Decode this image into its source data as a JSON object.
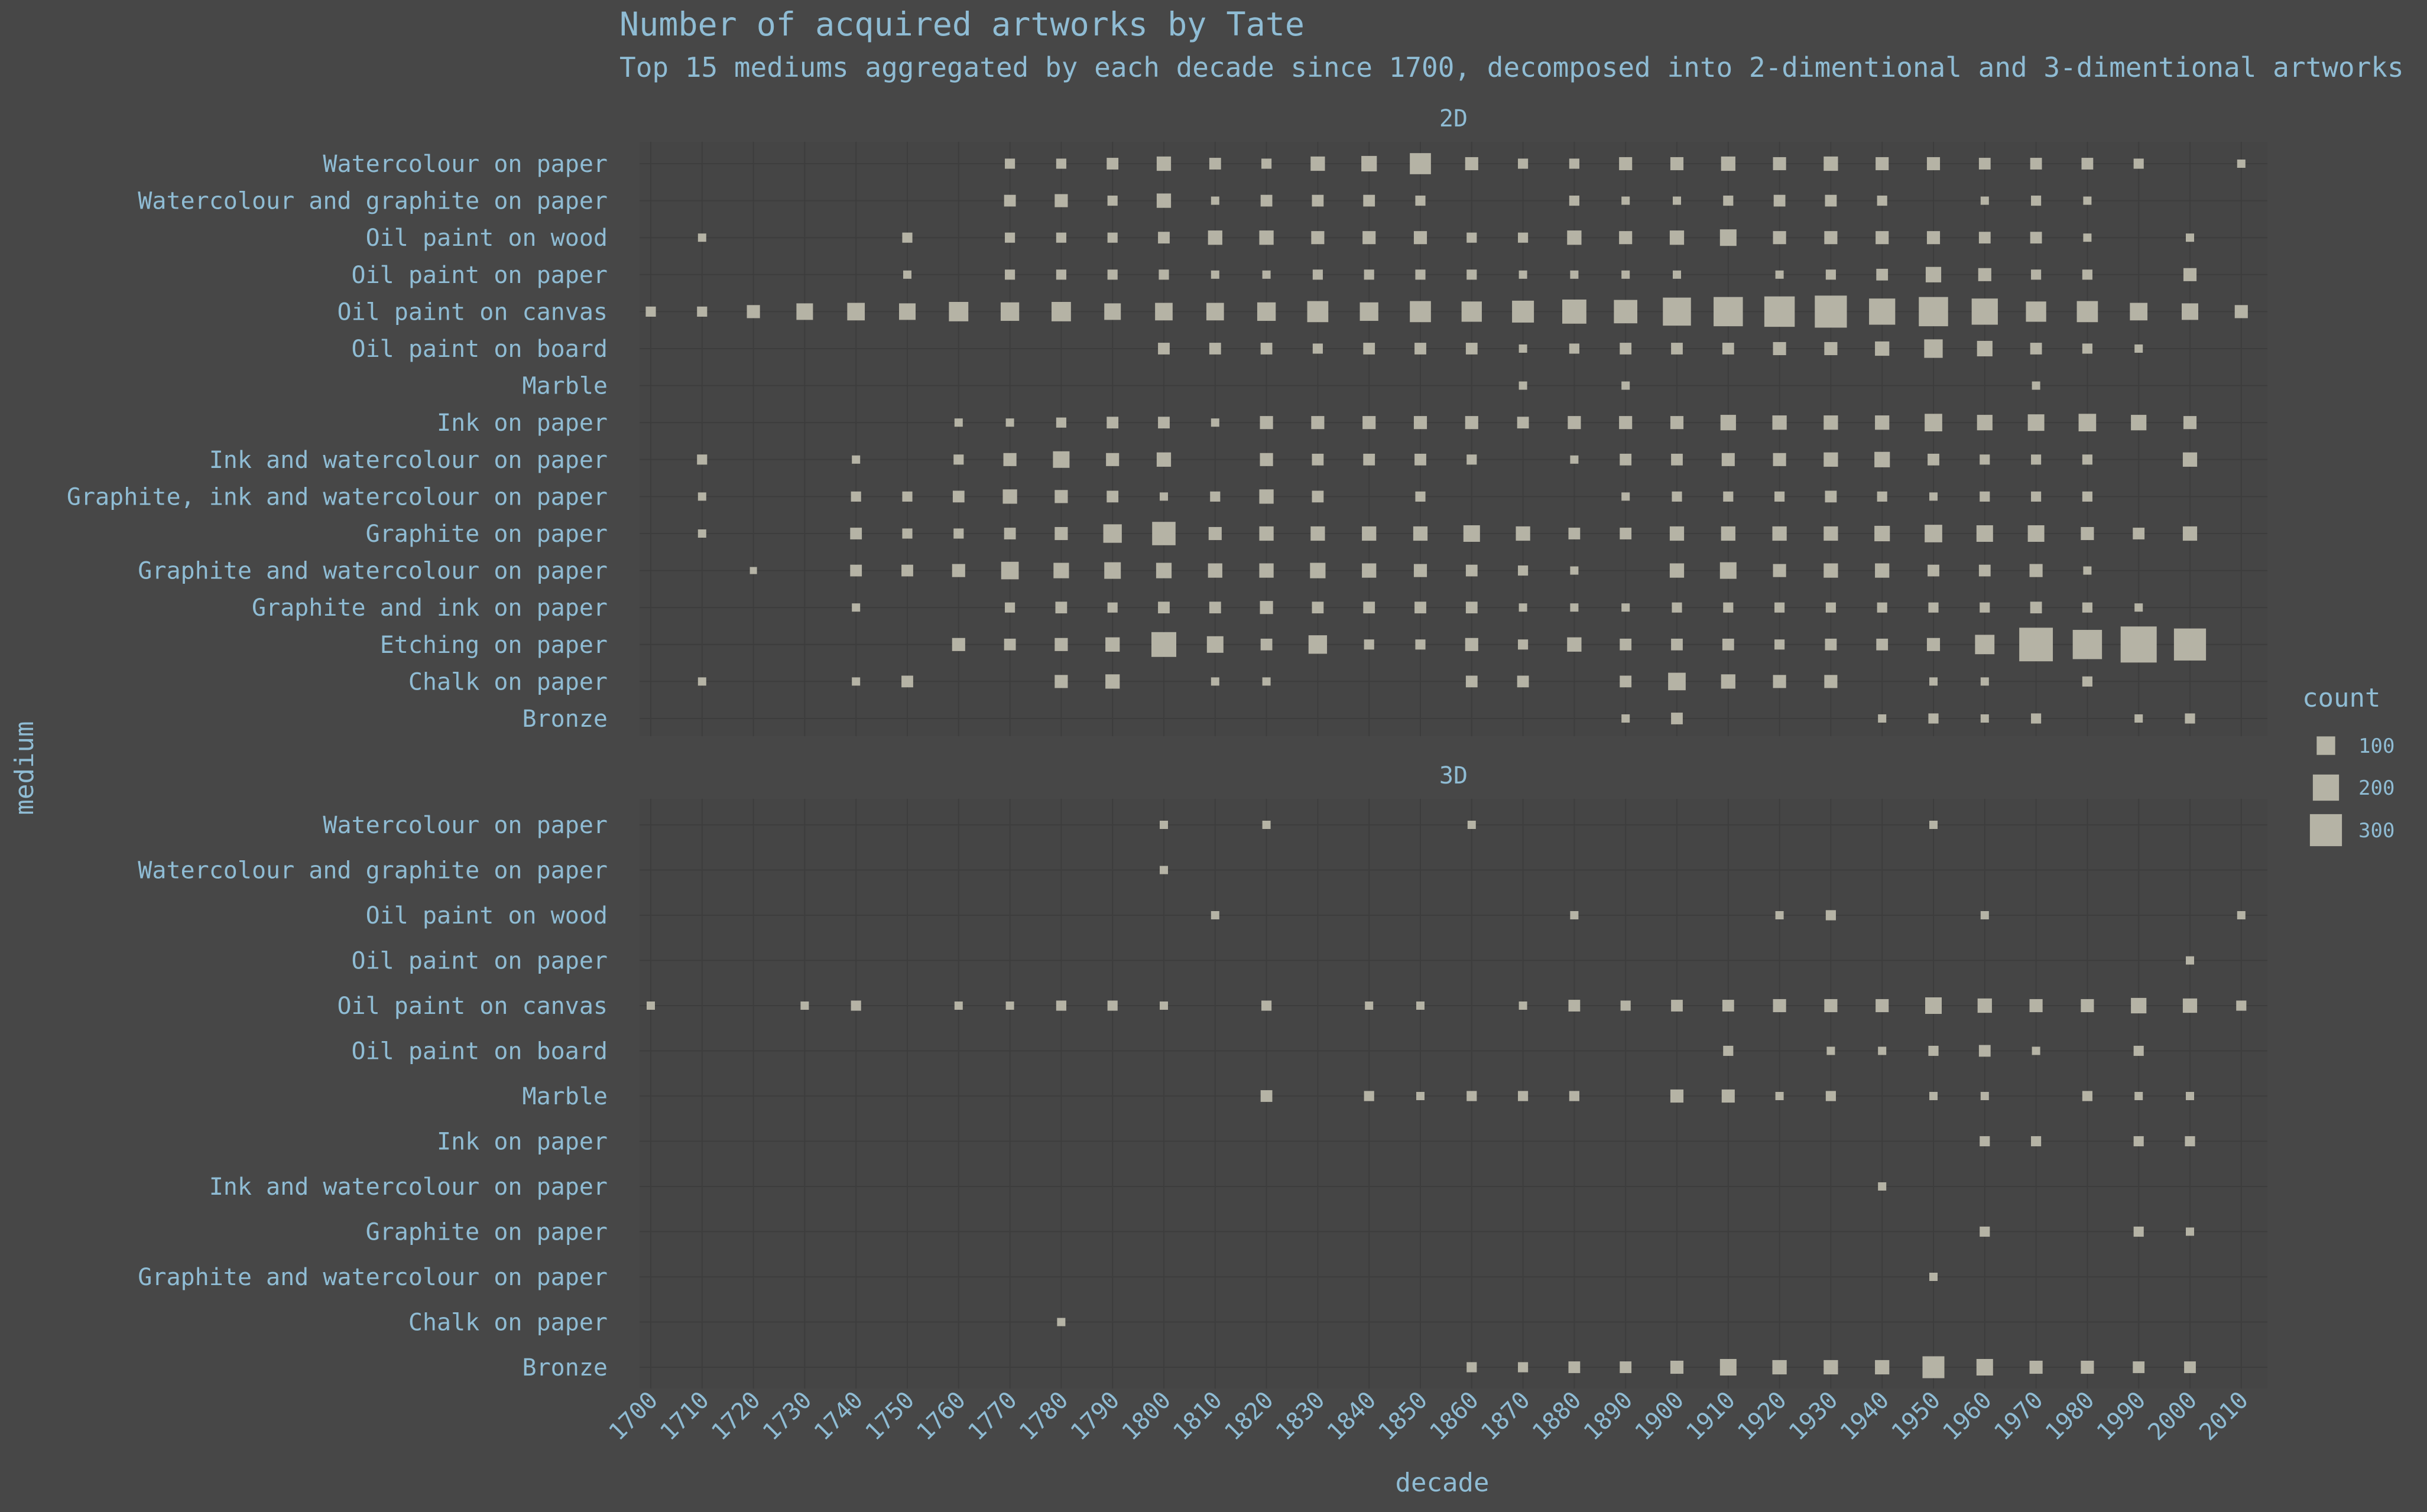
{
  "chart_data": {
    "type": "scatter",
    "title": "Number of acquired artworks by Tate",
    "subtitle": "Top 15 mediums aggregated by each decade since 1700, decomposed into 2-dimentional and 3-dimentional artworks",
    "xlabel": "decade",
    "ylabel": "medium",
    "x": [
      1700,
      1710,
      1720,
      1730,
      1740,
      1750,
      1760,
      1770,
      1780,
      1790,
      1800,
      1810,
      1820,
      1830,
      1840,
      1850,
      1860,
      1870,
      1880,
      1890,
      1900,
      1910,
      1920,
      1930,
      1940,
      1950,
      1960,
      1970,
      1980,
      1990,
      2000,
      2010
    ],
    "size_legend": {
      "title": "count",
      "values": [
        100,
        200,
        300
      ]
    },
    "colors": {
      "background": "#474747",
      "grid": "#3d3d3d",
      "marker": "#b5b3a5",
      "text": "#8fbcd4"
    },
    "facets": [
      {
        "label": "2D",
        "mediums": [
          "Watercolour on paper",
          "Watercolour and graphite on paper",
          "Oil paint on wood",
          "Oil paint on paper",
          "Oil paint on canvas",
          "Oil paint on board",
          "Marble",
          "Ink on paper",
          "Ink and watercolour on paper",
          "Graphite, ink and watercolour on paper",
          "Graphite on paper",
          "Graphite and watercolour on paper",
          "Graphite and ink on paper",
          "Etching on paper",
          "Chalk on paper",
          "Bronze"
        ],
        "points": [
          {
            "medium": "Watercolour on paper",
            "counts": {
              "1770": 30,
              "1780": 30,
              "1790": 40,
              "1800": 60,
              "1810": 40,
              "1820": 30,
              "1830": 60,
              "1840": 70,
              "1850": 130,
              "1860": 50,
              "1870": 30,
              "1880": 30,
              "1890": 50,
              "1900": 50,
              "1910": 60,
              "1920": 50,
              "1930": 60,
              "1940": 50,
              "1950": 50,
              "1960": 40,
              "1970": 40,
              "1980": 40,
              "1990": 30,
              "2010": 20
            }
          },
          {
            "medium": "Watercolour and graphite on paper",
            "counts": {
              "1770": 40,
              "1780": 50,
              "1790": 30,
              "1800": 60,
              "1810": 20,
              "1820": 40,
              "1830": 40,
              "1840": 40,
              "1850": 30,
              "1880": 30,
              "1890": 20,
              "1900": 20,
              "1910": 30,
              "1920": 40,
              "1930": 40,
              "1940": 30,
              "1960": 20,
              "1970": 30,
              "1980": 20
            }
          },
          {
            "medium": "Oil paint on wood",
            "counts": {
              "1710": 20,
              "1750": 30,
              "1770": 30,
              "1780": 30,
              "1790": 30,
              "1800": 40,
              "1810": 60,
              "1820": 60,
              "1830": 50,
              "1840": 50,
              "1850": 50,
              "1860": 30,
              "1870": 30,
              "1880": 60,
              "1890": 50,
              "1900": 60,
              "1910": 80,
              "1920": 50,
              "1930": 50,
              "1940": 50,
              "1950": 50,
              "1960": 40,
              "1970": 40,
              "1980": 20,
              "2000": 20
            }
          },
          {
            "medium": "Oil paint on paper",
            "counts": {
              "1750": 20,
              "1770": 30,
              "1780": 30,
              "1790": 30,
              "1800": 30,
              "1810": 20,
              "1820": 20,
              "1830": 30,
              "1840": 30,
              "1850": 30,
              "1860": 30,
              "1870": 20,
              "1880": 20,
              "1890": 20,
              "1900": 20,
              "1920": 20,
              "1930": 30,
              "1940": 40,
              "1950": 70,
              "1960": 50,
              "1970": 30,
              "1980": 30,
              "2000": 50
            }
          },
          {
            "medium": "Oil paint on canvas",
            "counts": {
              "1700": 30,
              "1710": 30,
              "1720": 50,
              "1730": 80,
              "1740": 90,
              "1750": 80,
              "1760": 110,
              "1770": 100,
              "1780": 110,
              "1790": 80,
              "1800": 90,
              "1810": 90,
              "1820": 100,
              "1830": 130,
              "1840": 100,
              "1850": 130,
              "1860": 120,
              "1870": 140,
              "1880": 170,
              "1890": 160,
              "1900": 230,
              "1910": 250,
              "1920": 270,
              "1930": 300,
              "1940": 200,
              "1950": 250,
              "1960": 200,
              "1970": 120,
              "1980": 130,
              "1990": 90,
              "2000": 80,
              "2010": 50
            }
          },
          {
            "medium": "Oil paint on board",
            "counts": {
              "1800": 40,
              "1810": 40,
              "1820": 40,
              "1830": 30,
              "1840": 40,
              "1850": 40,
              "1860": 40,
              "1870": 20,
              "1880": 30,
              "1890": 40,
              "1900": 40,
              "1910": 40,
              "1920": 50,
              "1930": 50,
              "1940": 60,
              "1950": 100,
              "1960": 70,
              "1970": 40,
              "1980": 30,
              "1990": 20
            }
          },
          {
            "medium": "Marble",
            "counts": {
              "1870": 20,
              "1890": 20,
              "1970": 20
            }
          },
          {
            "medium": "Ink on paper",
            "counts": {
              "1760": 20,
              "1770": 20,
              "1780": 30,
              "1790": 40,
              "1800": 40,
              "1810": 20,
              "1820": 50,
              "1830": 50,
              "1840": 50,
              "1850": 50,
              "1860": 50,
              "1870": 40,
              "1880": 50,
              "1890": 50,
              "1900": 50,
              "1910": 70,
              "1920": 60,
              "1930": 60,
              "1940": 60,
              "1950": 90,
              "1960": 70,
              "1970": 80,
              "1980": 90,
              "1990": 70,
              "2000": 50
            }
          },
          {
            "medium": "Ink and watercolour on paper",
            "counts": {
              "1710": 30,
              "1740": 20,
              "1760": 30,
              "1770": 50,
              "1780": 80,
              "1790": 50,
              "1800": 60,
              "1820": 50,
              "1830": 40,
              "1840": 40,
              "1850": 40,
              "1860": 30,
              "1880": 20,
              "1890": 40,
              "1900": 40,
              "1910": 50,
              "1920": 50,
              "1930": 60,
              "1940": 70,
              "1950": 40,
              "1960": 30,
              "1970": 30,
              "1980": 30,
              "2000": 60
            }
          },
          {
            "medium": "Graphite, ink and watercolour on paper",
            "counts": {
              "1710": 20,
              "1740": 30,
              "1750": 30,
              "1760": 40,
              "1770": 60,
              "1780": 50,
              "1790": 40,
              "1800": 20,
              "1810": 30,
              "1820": 60,
              "1830": 40,
              "1850": 30,
              "1890": 20,
              "1900": 30,
              "1910": 30,
              "1920": 30,
              "1930": 40,
              "1940": 30,
              "1950": 20,
              "1960": 30,
              "1970": 30,
              "1980": 30
            }
          },
          {
            "medium": "Graphite on paper",
            "counts": {
              "1710": 20,
              "1740": 40,
              "1750": 30,
              "1760": 30,
              "1770": 40,
              "1780": 50,
              "1790": 100,
              "1800": 160,
              "1810": 50,
              "1820": 60,
              "1830": 60,
              "1840": 60,
              "1850": 60,
              "1860": 80,
              "1870": 60,
              "1880": 40,
              "1890": 40,
              "1900": 60,
              "1910": 60,
              "1920": 60,
              "1930": 60,
              "1940": 70,
              "1950": 90,
              "1960": 80,
              "1970": 80,
              "1980": 50,
              "1990": 40,
              "2000": 60
            }
          },
          {
            "medium": "Graphite and watercolour on paper",
            "counts": {
              "1720": 10,
              "1740": 40,
              "1750": 40,
              "1760": 50,
              "1770": 90,
              "1780": 70,
              "1790": 80,
              "1800": 70,
              "1810": 60,
              "1820": 60,
              "1830": 70,
              "1840": 60,
              "1850": 50,
              "1860": 40,
              "1870": 30,
              "1880": 20,
              "1900": 60,
              "1910": 80,
              "1920": 50,
              "1930": 60,
              "1940": 60,
              "1950": 40,
              "1960": 40,
              "1970": 50,
              "1980": 20
            }
          },
          {
            "medium": "Graphite and ink on paper",
            "counts": {
              "1740": 20,
              "1770": 30,
              "1780": 40,
              "1790": 30,
              "1800": 40,
              "1810": 40,
              "1820": 50,
              "1830": 40,
              "1840": 40,
              "1850": 40,
              "1860": 40,
              "1870": 20,
              "1880": 20,
              "1890": 20,
              "1900": 30,
              "1910": 30,
              "1920": 30,
              "1930": 30,
              "1940": 30,
              "1950": 30,
              "1960": 30,
              "1970": 40,
              "1980": 30,
              "1990": 20
            }
          },
          {
            "medium": "Etching on paper",
            "counts": {
              "1760": 50,
              "1770": 40,
              "1780": 50,
              "1790": 60,
              "1800": 180,
              "1810": 80,
              "1820": 40,
              "1830": 100,
              "1840": 30,
              "1850": 30,
              "1860": 50,
              "1870": 30,
              "1880": 60,
              "1890": 40,
              "1900": 40,
              "1910": 40,
              "1920": 30,
              "1930": 40,
              "1940": 40,
              "1950": 50,
              "1960": 110,
              "1970": 330,
              "1980": 250,
              "1990": 380,
              "2000": 300
            }
          },
          {
            "medium": "Chalk on paper",
            "counts": {
              "1710": 20,
              "1740": 20,
              "1750": 40,
              "1780": 50,
              "1790": 60,
              "1810": 20,
              "1820": 20,
              "1860": 40,
              "1870": 40,
              "1890": 40,
              "1900": 90,
              "1910": 60,
              "1920": 50,
              "1930": 50,
              "1950": 20,
              "1960": 20,
              "1980": 30
            }
          },
          {
            "medium": "Bronze",
            "counts": {
              "1890": 20,
              "1900": 40,
              "1940": 20,
              "1950": 30,
              "1960": 20,
              "1970": 30,
              "1990": 20,
              "2000": 30
            }
          }
        ]
      },
      {
        "label": "3D",
        "mediums": [
          "Watercolour on paper",
          "Watercolour and graphite on paper",
          "Oil paint on wood",
          "Oil paint on paper",
          "Oil paint on canvas",
          "Oil paint on board",
          "Marble",
          "Ink on paper",
          "Ink and watercolour on paper",
          "Graphite on paper",
          "Graphite and watercolour on paper",
          "Chalk on paper",
          "Bronze"
        ],
        "points": [
          {
            "medium": "Watercolour on paper",
            "counts": {
              "1800": 20,
              "1820": 20,
              "1860": 20,
              "1950": 20
            }
          },
          {
            "medium": "Watercolour and graphite on paper",
            "counts": {
              "1800": 20
            }
          },
          {
            "medium": "Oil paint on wood",
            "counts": {
              "1810": 20,
              "1880": 20,
              "1920": 20,
              "1930": 30,
              "1960": 20,
              "2010": 20
            }
          },
          {
            "medium": "Oil paint on paper",
            "counts": {
              "2000": 20
            }
          },
          {
            "medium": "Oil paint on canvas",
            "counts": {
              "1700": 20,
              "1730": 20,
              "1740": 30,
              "1760": 20,
              "1770": 20,
              "1780": 30,
              "1790": 30,
              "1800": 20,
              "1820": 30,
              "1840": 20,
              "1850": 20,
              "1870": 20,
              "1880": 40,
              "1890": 30,
              "1900": 40,
              "1910": 40,
              "1920": 50,
              "1930": 50,
              "1940": 50,
              "1950": 80,
              "1960": 60,
              "1970": 50,
              "1980": 50,
              "1990": 70,
              "2000": 60,
              "2010": 30
            }
          },
          {
            "medium": "Oil paint on board",
            "counts": {
              "1910": 30,
              "1930": 20,
              "1940": 20,
              "1950": 30,
              "1960": 40,
              "1970": 20,
              "1990": 30
            }
          },
          {
            "medium": "Marble",
            "counts": {
              "1820": 40,
              "1840": 30,
              "1850": 20,
              "1860": 30,
              "1870": 30,
              "1880": 30,
              "1900": 50,
              "1910": 50,
              "1920": 20,
              "1930": 30,
              "1950": 20,
              "1960": 20,
              "1980": 30,
              "1990": 20,
              "2000": 20
            }
          },
          {
            "medium": "Ink on paper",
            "counts": {
              "1960": 30,
              "1970": 30,
              "1990": 30,
              "2000": 30
            }
          },
          {
            "medium": "Ink and watercolour on paper",
            "counts": {
              "1940": 20
            }
          },
          {
            "medium": "Graphite on paper",
            "counts": {
              "1960": 30,
              "1990": 30,
              "2000": 20
            }
          },
          {
            "medium": "Graphite and watercolour on paper",
            "counts": {
              "1950": 20
            }
          },
          {
            "medium": "Chalk on paper",
            "counts": {
              "1780": 20
            }
          },
          {
            "medium": "Bronze",
            "counts": {
              "1860": 30,
              "1870": 30,
              "1880": 40,
              "1890": 40,
              "1900": 50,
              "1910": 80,
              "1920": 60,
              "1930": 60,
              "1940": 60,
              "1950": 140,
              "1960": 80,
              "1970": 50,
              "1980": 50,
              "1990": 40,
              "2000": 40
            }
          }
        ]
      }
    ]
  }
}
